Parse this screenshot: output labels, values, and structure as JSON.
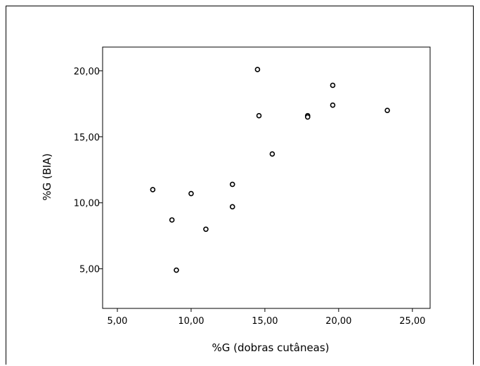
{
  "chart_data": {
    "type": "scatter",
    "xlabel": "%G (dobras cutâneas)",
    "ylabel": "%G (BIA)",
    "xlim": [
      4.0,
      26.2
    ],
    "ylim": [
      2.0,
      21.8
    ],
    "xticks": [
      5,
      10,
      15,
      20,
      25
    ],
    "yticks": [
      5,
      10,
      15,
      20
    ],
    "xtick_labels": [
      "5,00",
      "10,00",
      "15,00",
      "20,00",
      "25,00"
    ],
    "ytick_labels": [
      "5,00",
      "10,00",
      "15,00",
      "20,00"
    ],
    "grid": false,
    "legend": false,
    "marker_color": "#000000",
    "points": [
      {
        "x": 7.4,
        "y": 11.0
      },
      {
        "x": 8.7,
        "y": 8.7
      },
      {
        "x": 9.0,
        "y": 4.9
      },
      {
        "x": 10.0,
        "y": 10.7
      },
      {
        "x": 11.0,
        "y": 8.0
      },
      {
        "x": 12.8,
        "y": 11.4
      },
      {
        "x": 12.8,
        "y": 9.7
      },
      {
        "x": 14.5,
        "y": 20.1
      },
      {
        "x": 14.6,
        "y": 16.6
      },
      {
        "x": 15.5,
        "y": 13.7
      },
      {
        "x": 17.9,
        "y": 16.6
      },
      {
        "x": 17.9,
        "y": 16.5
      },
      {
        "x": 19.6,
        "y": 18.9
      },
      {
        "x": 19.6,
        "y": 17.4
      },
      {
        "x": 23.3,
        "y": 17.0
      }
    ]
  }
}
